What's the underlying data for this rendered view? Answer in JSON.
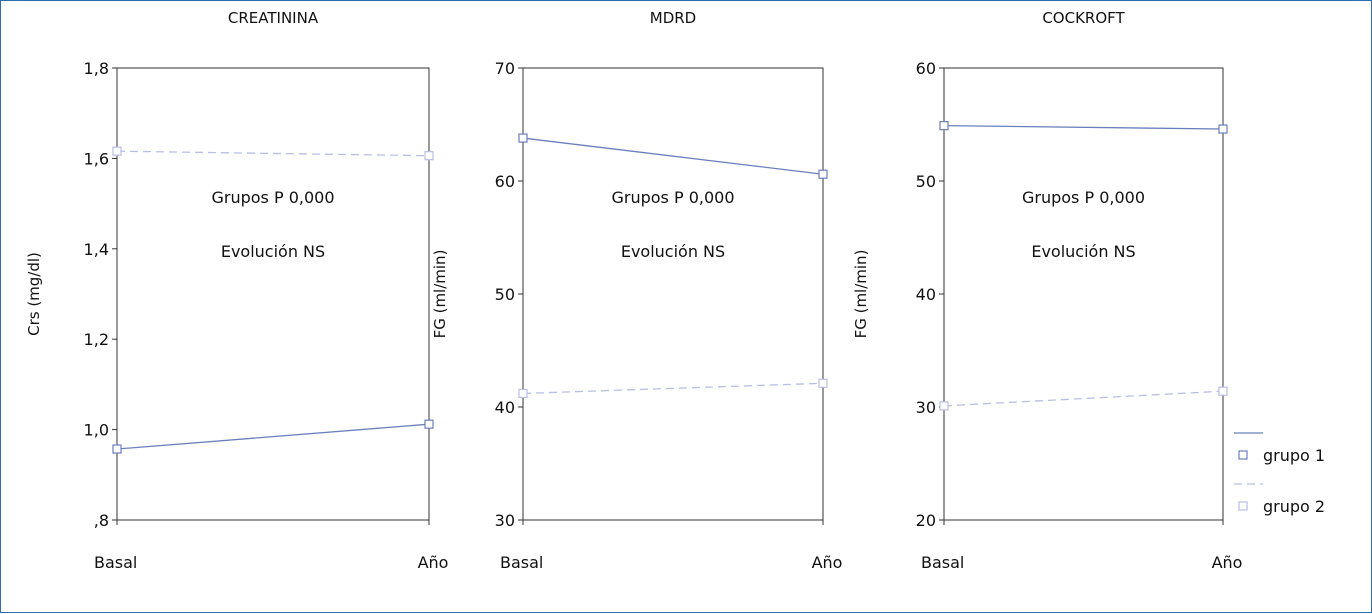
{
  "chart_data": [
    {
      "type": "line",
      "title": "CREATININA",
      "ylabel": "Crs (mg/dl)",
      "ylim": [
        0.8,
        1.8
      ],
      "yticks": [
        ",8",
        "1,0",
        "1,2",
        "1,4",
        "1,6",
        "1,8"
      ],
      "categories": [
        "Basal",
        "Año"
      ],
      "annotations": [
        "Grupos P 0,000",
        "Evolución NS"
      ],
      "series": [
        {
          "name": "grupo 1",
          "values": [
            0.957,
            1.012
          ],
          "style": "solid",
          "color": "#6b7fbd"
        },
        {
          "name": "grupo 2",
          "values": [
            1.616,
            1.606
          ],
          "style": "dashed",
          "color": "#b9bfe2"
        }
      ]
    },
    {
      "type": "line",
      "title": "MDRD",
      "ylabel": "FG (ml/min)",
      "ylim": [
        30,
        70
      ],
      "yticks": [
        "30",
        "40",
        "50",
        "60",
        "70"
      ],
      "categories": [
        "Basal",
        "Año"
      ],
      "annotations": [
        "Grupos P 0,000",
        "Evolución NS"
      ],
      "series": [
        {
          "name": "grupo 1",
          "values": [
            63.8,
            60.6
          ],
          "style": "solid",
          "color": "#6b7fbd"
        },
        {
          "name": "grupo 2",
          "values": [
            41.2,
            42.1
          ],
          "style": "dashed",
          "color": "#b9bfe2"
        }
      ]
    },
    {
      "type": "line",
      "title": "COCKROFT",
      "ylabel": "FG (ml/min)",
      "ylim": [
        20,
        60
      ],
      "yticks": [
        "20",
        "30",
        "40",
        "50",
        "60"
      ],
      "categories": [
        "Basal",
        "Año"
      ],
      "annotations": [
        "Grupos P 0,000",
        "Evolución NS"
      ],
      "series": [
        {
          "name": "grupo 1",
          "values": [
            54.9,
            54.6
          ],
          "style": "solid",
          "color": "#6b7fbd"
        },
        {
          "name": "grupo 2",
          "values": [
            30.1,
            31.4
          ],
          "style": "dashed",
          "color": "#b9bfe2"
        }
      ]
    }
  ],
  "legend": {
    "position": "bottom-right",
    "items": [
      {
        "label": "grupo 1",
        "style": "solid",
        "color": "#6b7fbd"
      },
      {
        "label": "grupo 2",
        "style": "dashed",
        "color": "#b9bfe2"
      }
    ]
  }
}
